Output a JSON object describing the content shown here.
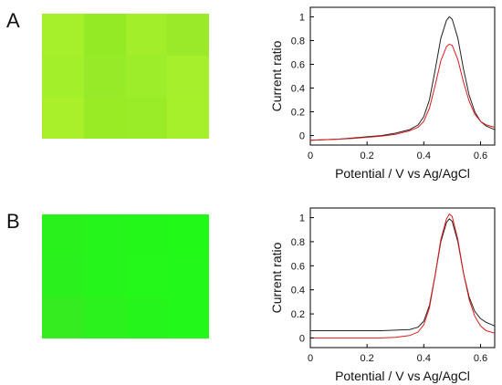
{
  "panels": [
    {
      "label": "A"
    },
    {
      "label": "B"
    }
  ],
  "chart_data": [
    {
      "type": "heatmap",
      "panel": "A",
      "rows": 3,
      "cols": 4,
      "cell_colors": [
        [
          "#a6ef2b",
          "#94ea25",
          "#a3ee2b",
          "#9aea2a"
        ],
        [
          "#a3ef2a",
          "#96ea28",
          "#9eed2a",
          "#a6ef2c"
        ],
        [
          "#a9f02b",
          "#98eb25",
          "#99ec27",
          "#a5ef2b"
        ]
      ]
    },
    {
      "type": "line",
      "panel": "A",
      "xlabel": "Potential / V vs Ag/AgCl",
      "ylabel": "Current ratio",
      "xlim": [
        0,
        0.65
      ],
      "ylim": [
        -0.08,
        1.08
      ],
      "xticks": [
        "0",
        "0.2",
        "0.4",
        "0.6"
      ],
      "yticks": [
        "0",
        "0.2",
        "0.4",
        "0.6",
        "0.8",
        "1"
      ],
      "x": [
        0.0,
        0.05,
        0.1,
        0.15,
        0.2,
        0.25,
        0.3,
        0.35,
        0.38,
        0.4,
        0.42,
        0.44,
        0.46,
        0.48,
        0.49,
        0.5,
        0.52,
        0.54,
        0.56,
        0.58,
        0.6,
        0.62,
        0.65
      ],
      "series": [
        {
          "color": "#222222",
          "values": [
            -0.04,
            -0.035,
            -0.03,
            -0.02,
            -0.01,
            0.0,
            0.02,
            0.05,
            0.09,
            0.16,
            0.3,
            0.55,
            0.82,
            0.97,
            1.0,
            0.98,
            0.82,
            0.56,
            0.34,
            0.2,
            0.12,
            0.08,
            0.05
          ]
        },
        {
          "color": "#e0191b",
          "values": [
            -0.04,
            -0.035,
            -0.03,
            -0.025,
            -0.015,
            -0.005,
            0.01,
            0.04,
            0.07,
            0.12,
            0.23,
            0.42,
            0.63,
            0.75,
            0.77,
            0.76,
            0.64,
            0.45,
            0.29,
            0.18,
            0.12,
            0.09,
            0.07
          ]
        }
      ]
    },
    {
      "type": "heatmap",
      "panel": "B",
      "rows": 3,
      "cols": 4,
      "cell_colors": [
        [
          "#29f11c",
          "#25f51a",
          "#23f71a",
          "#21f919"
        ],
        [
          "#2af11d",
          "#26f51b",
          "#23f81a",
          "#22f81a"
        ],
        [
          "#34ec20",
          "#2bf11d",
          "#25f51b",
          "#22f81a"
        ]
      ]
    },
    {
      "type": "line",
      "panel": "B",
      "xlabel": "Potential / V vs Ag/AgCl",
      "ylabel": "Current ratio",
      "xlim": [
        0,
        0.65
      ],
      "ylim": [
        -0.08,
        1.08
      ],
      "xticks": [
        "0",
        "0.2",
        "0.4",
        "0.6"
      ],
      "yticks": [
        "0",
        "0.2",
        "0.4",
        "0.6",
        "0.8",
        "1"
      ],
      "x": [
        0.0,
        0.05,
        0.1,
        0.15,
        0.2,
        0.25,
        0.3,
        0.35,
        0.38,
        0.4,
        0.42,
        0.44,
        0.46,
        0.48,
        0.49,
        0.5,
        0.52,
        0.54,
        0.56,
        0.58,
        0.6,
        0.62,
        0.65
      ],
      "series": [
        {
          "color": "#222222",
          "values": [
            0.06,
            0.06,
            0.06,
            0.06,
            0.06,
            0.06,
            0.065,
            0.07,
            0.09,
            0.14,
            0.27,
            0.52,
            0.8,
            0.96,
            0.99,
            0.97,
            0.8,
            0.54,
            0.34,
            0.22,
            0.16,
            0.13,
            0.1
          ]
        },
        {
          "color": "#e0191b",
          "values": [
            0.0,
            0.0,
            0.0,
            0.0,
            0.0,
            0.0,
            0.005,
            0.02,
            0.05,
            0.11,
            0.25,
            0.52,
            0.82,
            0.99,
            1.03,
            1.01,
            0.82,
            0.54,
            0.32,
            0.18,
            0.1,
            0.06,
            0.04
          ]
        }
      ]
    }
  ]
}
